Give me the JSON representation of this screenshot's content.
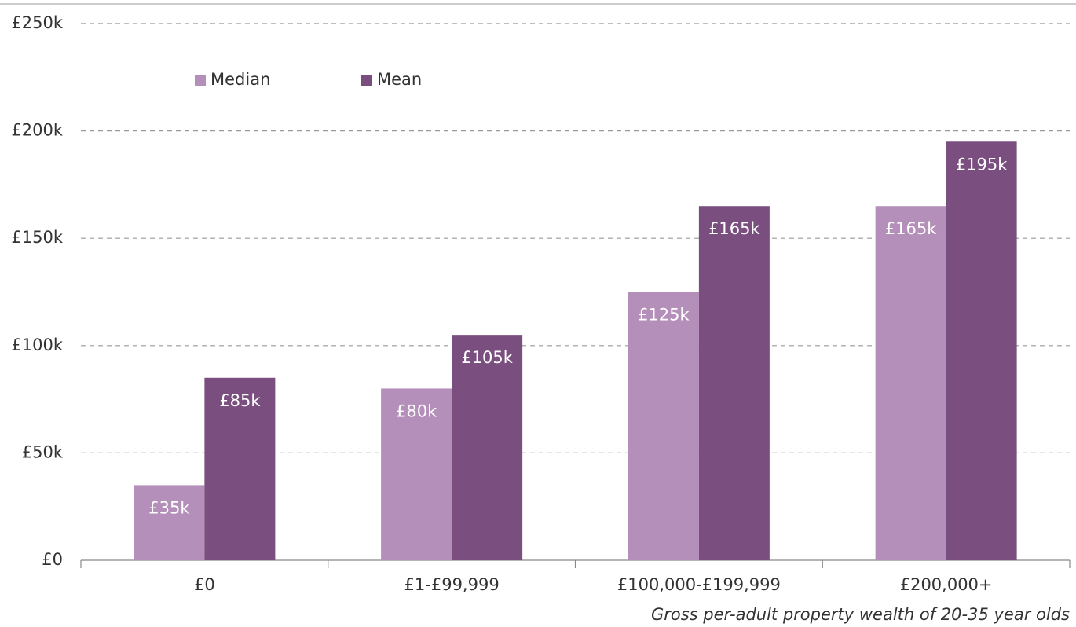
{
  "chart_data": {
    "type": "bar",
    "categories": [
      "£0",
      "£1-£99,999",
      "£100,000-£199,999",
      "£200,000+"
    ],
    "series": [
      {
        "name": "Median",
        "color": "#b48fb9",
        "values": [
          35000,
          80000,
          125000,
          165000
        ],
        "value_labels": [
          "£35k",
          "£80k",
          "£125k",
          "£165k"
        ]
      },
      {
        "name": "Mean",
        "color": "#7a4f7f",
        "values": [
          85000,
          105000,
          165000,
          195000
        ],
        "value_labels": [
          "£85k",
          "£105k",
          "£165k",
          "£195k"
        ]
      }
    ],
    "xlabel": "Gross per-adult property wealth of 20-35 year olds",
    "ylim": [
      0,
      250000
    ],
    "yticks": [
      {
        "value": 0,
        "label": "£0"
      },
      {
        "value": 50000,
        "label": "£50k"
      },
      {
        "value": 100000,
        "label": "£100k"
      },
      {
        "value": 150000,
        "label": "£150k"
      },
      {
        "value": 200000,
        "label": "£200k"
      },
      {
        "value": 250000,
        "label": "£250k"
      }
    ],
    "grid": true,
    "legend": "top-left"
  }
}
